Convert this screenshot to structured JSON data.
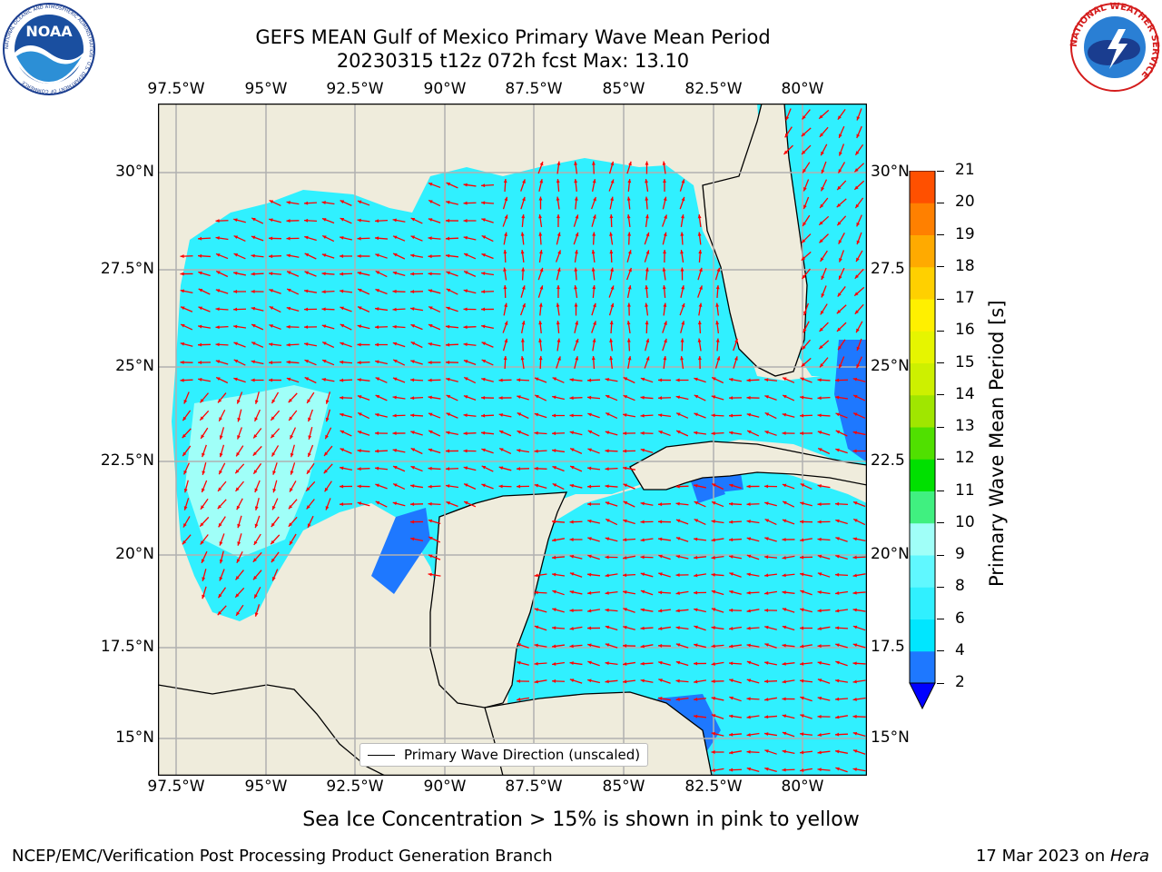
{
  "title_line1": "GEFS MEAN Gulf of Mexico Primary Wave Mean Period",
  "title_line2": "20230315 t12z 072h fcst   Max: 13.10",
  "lon_labels": [
    "97.5°W",
    "95°W",
    "92.5°W",
    "90°W",
    "87.5°W",
    "85°W",
    "82.5°W",
    "80°W"
  ],
  "lat_labels_left": [
    "30°N",
    "27.5°N",
    "25°N",
    "22.5°N",
    "20°N",
    "17.5°N",
    "15°N"
  ],
  "lat_labels_right": [
    "30°N",
    "27.5",
    "25°N",
    "22.5",
    "20°N",
    "17.5",
    "15°N"
  ],
  "legend_label": "Primary Wave Direction (unscaled)",
  "colorbar": {
    "label": "Primary Wave Mean Period [s]",
    "ticks": [
      "2",
      "4",
      "6",
      "8",
      "9",
      "10",
      "11",
      "12",
      "13",
      "14",
      "15",
      "16",
      "17",
      "18",
      "19",
      "20",
      "21"
    ],
    "colors": [
      "#1e78ff",
      "#00e6ff",
      "#30f0ff",
      "#60f8ff",
      "#a0fff8",
      "#40f080",
      "#00e000",
      "#50e000",
      "#a0e600",
      "#cdf000",
      "#e6f500",
      "#fff000",
      "#ffd000",
      "#ffaa00",
      "#ff8000",
      "#ff5000",
      "#ff2000",
      "#ff0000"
    ],
    "under_color": "#0000ff"
  },
  "ice_note": "Sea Ice Concentration > 15% is shown in pink to yellow",
  "footer_left": "NCEP/EMC/Verification Post Processing Product Generation Branch",
  "footer_date": "17 Mar 2023 on ",
  "footer_machine": "Hera",
  "noaa_logo_text": "NOAA",
  "noaa_ring_text": "NATIONAL OCEANIC AND ATMOSPHERIC ADMINISTRATION · U.S. DEPARTMENT OF COMMERCE",
  "nws_ring_text": "NATIONAL WEATHER SERVICE",
  "colors": {
    "land": "#efecdc",
    "ocean_main": "#30f0ff",
    "ocean_light": "#a0fff8",
    "ocean_deep": "#1e78ff",
    "ice": "#cdf000",
    "arrow": "#ff0000",
    "grid": "#b0b0b0"
  },
  "chart_data": {
    "type": "map",
    "region": "Gulf of Mexico",
    "lon_range": [
      -98.0,
      -78.2
    ],
    "lat_range": [
      14.0,
      31.8
    ],
    "max_value": 13.1,
    "units": "s"
  }
}
